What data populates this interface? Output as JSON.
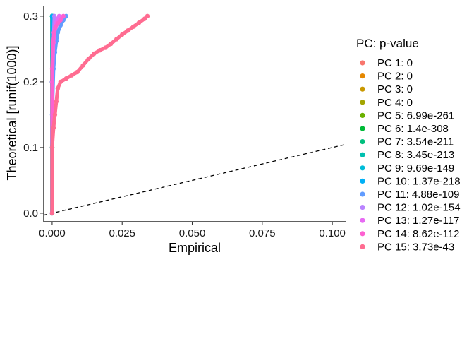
{
  "chart_data": {
    "type": "scatter",
    "xlabel": "Empirical",
    "ylabel": "Theoretical [runif(1000)]",
    "xlim": [
      -0.003,
      0.105
    ],
    "ylim": [
      -0.013,
      0.316
    ],
    "xticks": [
      0.0,
      0.025,
      0.05,
      0.075,
      0.1
    ],
    "xtick_labels": [
      "0.000",
      "0.025",
      "0.050",
      "0.075",
      "0.100"
    ],
    "yticks": [
      0.0,
      0.1,
      0.2,
      0.3
    ],
    "ytick_labels": [
      "0.0",
      "0.1",
      "0.2",
      "0.3"
    ],
    "reference_line": {
      "style": "dashed",
      "slope": 1,
      "intercept": 0,
      "color": "#000000"
    },
    "legend": {
      "title": "PC: p-value",
      "position": "right"
    },
    "grid": false,
    "series": [
      {
        "name": "PC 1: 0",
        "color": "#F8766D",
        "points": [
          [
            0,
            0.0
          ],
          [
            0,
            0.1
          ],
          [
            0,
            0.2
          ],
          [
            0,
            0.3
          ]
        ]
      },
      {
        "name": "PC 2: 0",
        "color": "#E58700",
        "points": [
          [
            0,
            0.0
          ],
          [
            0,
            0.1
          ],
          [
            0,
            0.2
          ],
          [
            0,
            0.3
          ]
        ]
      },
      {
        "name": "PC 3: 0",
        "color": "#C99800",
        "points": [
          [
            0,
            0.0
          ],
          [
            0,
            0.1
          ],
          [
            0,
            0.2
          ],
          [
            0,
            0.3
          ]
        ]
      },
      {
        "name": "PC 4: 0",
        "color": "#A3A500",
        "points": [
          [
            0,
            0.0
          ],
          [
            0,
            0.1
          ],
          [
            0,
            0.2
          ],
          [
            0,
            0.3
          ]
        ]
      },
      {
        "name": "PC 5: 6.99e-261",
        "color": "#6BB100",
        "points": [
          [
            0,
            0.0
          ],
          [
            0,
            0.1
          ],
          [
            0,
            0.2
          ],
          [
            0,
            0.3
          ]
        ]
      },
      {
        "name": "PC 6: 1.4e-308",
        "color": "#00BA38",
        "points": [
          [
            0,
            0.0
          ],
          [
            0,
            0.1
          ],
          [
            0,
            0.2
          ],
          [
            0,
            0.3
          ]
        ]
      },
      {
        "name": "PC 7: 3.54e-211",
        "color": "#00BF7D",
        "points": [
          [
            0,
            0.0
          ],
          [
            0,
            0.1
          ],
          [
            0,
            0.2
          ],
          [
            0,
            0.3
          ]
        ]
      },
      {
        "name": "PC 8: 3.45e-213",
        "color": "#00C0AF",
        "points": [
          [
            0,
            0.0
          ],
          [
            0,
            0.1
          ],
          [
            0,
            0.2
          ],
          [
            0,
            0.3
          ]
        ]
      },
      {
        "name": "PC 9: 9.69e-149",
        "color": "#00BCD8",
        "points": [
          [
            0,
            0.0
          ],
          [
            0,
            0.1
          ],
          [
            0,
            0.2
          ],
          [
            0.0002,
            0.3
          ]
        ]
      },
      {
        "name": "PC 10: 1.37e-218",
        "color": "#00B0F6",
        "points": [
          [
            0,
            0.0
          ],
          [
            0,
            0.1
          ],
          [
            0,
            0.2
          ],
          [
            0,
            0.3
          ]
        ]
      },
      {
        "name": "PC 11: 4.88e-109",
        "color": "#619CFF",
        "points": [
          [
            0,
            0.0
          ],
          [
            0,
            0.15
          ],
          [
            0.0005,
            0.22
          ],
          [
            0.001,
            0.245
          ],
          [
            0.0015,
            0.262
          ],
          [
            0.002,
            0.275
          ],
          [
            0.003,
            0.286
          ],
          [
            0.004,
            0.294
          ],
          [
            0.005,
            0.3
          ]
        ]
      },
      {
        "name": "PC 12: 1.02e-154",
        "color": "#B983FF",
        "points": [
          [
            0,
            0.0
          ],
          [
            0,
            0.2
          ],
          [
            0.0003,
            0.25
          ],
          [
            0.0006,
            0.275
          ],
          [
            0.0008,
            0.3
          ]
        ]
      },
      {
        "name": "PC 13: 1.27e-117",
        "color": "#E76BF3",
        "points": [
          [
            0,
            0.0
          ],
          [
            0,
            0.2
          ],
          [
            0.0005,
            0.26
          ],
          [
            0.001,
            0.28
          ],
          [
            0.0015,
            0.29
          ],
          [
            0.002,
            0.296
          ],
          [
            0.0025,
            0.3
          ]
        ]
      },
      {
        "name": "PC 14: 8.62e-112",
        "color": "#FD61D1",
        "points": [
          [
            0,
            0.0
          ],
          [
            0,
            0.22
          ],
          [
            0.0003,
            0.26
          ],
          [
            0.0007,
            0.275
          ],
          [
            0.0012,
            0.283
          ],
          [
            0.002,
            0.289
          ],
          [
            0.003,
            0.294
          ],
          [
            0.004,
            0.3
          ]
        ]
      },
      {
        "name": "PC 15: 3.73e-43",
        "color": "#FF6C91",
        "points": [
          [
            0,
            0.0
          ],
          [
            0,
            0.1
          ],
          [
            0.0005,
            0.13
          ],
          [
            0.001,
            0.15
          ],
          [
            0.0015,
            0.17
          ],
          [
            0.002,
            0.19
          ],
          [
            0.003,
            0.2
          ],
          [
            0.005,
            0.205
          ],
          [
            0.007,
            0.21
          ],
          [
            0.009,
            0.215
          ],
          [
            0.011,
            0.225
          ],
          [
            0.013,
            0.235
          ],
          [
            0.015,
            0.243
          ],
          [
            0.017,
            0.248
          ],
          [
            0.019,
            0.252
          ],
          [
            0.021,
            0.258
          ],
          [
            0.023,
            0.265
          ],
          [
            0.025,
            0.272
          ],
          [
            0.027,
            0.278
          ],
          [
            0.029,
            0.284
          ],
          [
            0.031,
            0.29
          ],
          [
            0.033,
            0.296
          ],
          [
            0.034,
            0.3
          ]
        ]
      }
    ]
  }
}
